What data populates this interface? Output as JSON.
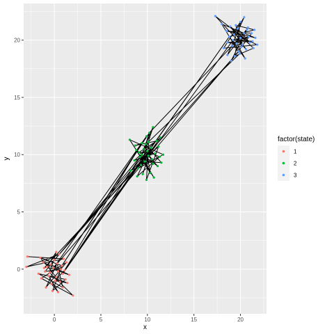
{
  "chart_data": {
    "type": "scatter",
    "subtype": "scatter-with-path",
    "title": "",
    "xlabel": "x",
    "ylabel": "y",
    "xlim": [
      -3.3,
      22.8
    ],
    "ylim": [
      -3.9,
      23.2
    ],
    "x_ticks": [
      0,
      5,
      10,
      15,
      20
    ],
    "x_tick_labels": [
      "0",
      "5",
      "10",
      "15",
      "20"
    ],
    "y_ticks": [
      0,
      5,
      10,
      15,
      20
    ],
    "y_tick_labels": [
      "0",
      "5",
      "10",
      "15",
      "20"
    ],
    "grid": true,
    "panel_background": "#ebebeb",
    "grid_color": "#ffffff",
    "path_color": "#000000",
    "legend": {
      "title": "factor(state)",
      "placement": "right",
      "entries": [
        {
          "label": "1",
          "color": "#f8766d"
        },
        {
          "label": "2",
          "color": "#00ba38"
        },
        {
          "label": "3",
          "color": "#619cff"
        }
      ]
    },
    "series": [
      {
        "name": "1",
        "color": "#f8766d",
        "points": [
          [
            -2.9,
            1.1
          ],
          [
            -3.0,
            0.2
          ],
          [
            -1.5,
            1.0
          ],
          [
            -1.2,
            0.6
          ],
          [
            -0.8,
            0.2
          ],
          [
            -0.5,
            -0.3
          ],
          [
            0.0,
            0.8
          ],
          [
            0.2,
            1.5
          ],
          [
            0.5,
            1.3
          ],
          [
            0.3,
            0.5
          ],
          [
            -0.1,
            0.1
          ],
          [
            0.4,
            -0.2
          ],
          [
            0.8,
            0.3
          ],
          [
            1.0,
            0.9
          ],
          [
            1.3,
            0.6
          ],
          [
            1.6,
            -0.5
          ],
          [
            1.2,
            -0.9
          ],
          [
            0.9,
            -0.4
          ],
          [
            0.6,
            -1.1
          ],
          [
            0.2,
            -0.7
          ],
          [
            -0.3,
            -1.3
          ],
          [
            -0.6,
            -0.6
          ],
          [
            -1.0,
            -0.2
          ],
          [
            -1.4,
            -0.8
          ],
          [
            -1.7,
            -0.4
          ],
          [
            -0.9,
            -1.6
          ],
          [
            -0.2,
            -1.9
          ],
          [
            0.4,
            -2.0
          ],
          [
            0.9,
            -1.6
          ],
          [
            2.0,
            -2.3
          ],
          [
            1.4,
            -1.2
          ],
          [
            0.7,
            0.0
          ],
          [
            -0.4,
            0.4
          ],
          [
            -1.1,
            0.1
          ],
          [
            0.1,
            -1.0
          ],
          [
            1.1,
            -0.1
          ]
        ]
      },
      {
        "name": "2",
        "color": "#00ba38",
        "points": [
          [
            8.1,
            11.3
          ],
          [
            8.7,
            10.8
          ],
          [
            9.1,
            10.2
          ],
          [
            9.4,
            11.0
          ],
          [
            9.6,
            10.5
          ],
          [
            9.9,
            11.6
          ],
          [
            10.2,
            11.9
          ],
          [
            10.6,
            12.4
          ],
          [
            11.0,
            11.2
          ],
          [
            11.4,
            11.5
          ],
          [
            11.2,
            10.7
          ],
          [
            10.8,
            10.1
          ],
          [
            10.5,
            9.6
          ],
          [
            10.1,
            9.9
          ],
          [
            9.7,
            9.4
          ],
          [
            9.3,
            9.1
          ],
          [
            9.0,
            8.8
          ],
          [
            8.6,
            9.5
          ],
          [
            8.2,
            8.6
          ],
          [
            8.9,
            8.1
          ],
          [
            9.5,
            8.3
          ],
          [
            9.9,
            7.8
          ],
          [
            10.3,
            8.4
          ],
          [
            10.7,
            8.0
          ],
          [
            11.1,
            9.0
          ],
          [
            11.5,
            9.3
          ],
          [
            11.7,
            10.0
          ],
          [
            10.4,
            10.6
          ],
          [
            9.8,
            10.9
          ],
          [
            9.2,
            9.8
          ],
          [
            10.0,
            10.3
          ],
          [
            10.6,
            9.2
          ],
          [
            9.4,
            10.0
          ],
          [
            8.8,
            10.4
          ],
          [
            11.3,
            9.8
          ],
          [
            10.1,
            11.1
          ]
        ]
      },
      {
        "name": "3",
        "color": "#619cff",
        "points": [
          [
            17.3,
            22.1
          ],
          [
            18.0,
            21.4
          ],
          [
            18.5,
            20.8
          ],
          [
            18.9,
            21.2
          ],
          [
            19.3,
            20.5
          ],
          [
            19.7,
            21.0
          ],
          [
            20.0,
            21.6
          ],
          [
            20.4,
            22.0
          ],
          [
            20.8,
            21.1
          ],
          [
            21.2,
            20.6
          ],
          [
            21.6,
            20.2
          ],
          [
            21.8,
            19.6
          ],
          [
            21.4,
            19.3
          ],
          [
            21.0,
            19.8
          ],
          [
            20.6,
            19.2
          ],
          [
            20.2,
            19.6
          ],
          [
            19.8,
            19.0
          ],
          [
            19.4,
            18.6
          ],
          [
            19.0,
            18.2
          ],
          [
            18.6,
            18.7
          ],
          [
            18.2,
            19.3
          ],
          [
            18.6,
            19.8
          ],
          [
            19.2,
            20.0
          ],
          [
            19.6,
            19.7
          ],
          [
            20.0,
            20.2
          ],
          [
            20.4,
            20.6
          ],
          [
            20.9,
            20.3
          ],
          [
            21.3,
            19.9
          ],
          [
            20.5,
            18.4
          ],
          [
            19.9,
            18.8
          ],
          [
            18.8,
            20.3
          ],
          [
            19.5,
            21.3
          ],
          [
            20.7,
            20.9
          ],
          [
            20.1,
            19.4
          ],
          [
            21.5,
            20.9
          ],
          [
            19.1,
            19.5
          ]
        ]
      }
    ],
    "path": [
      [
        -2.9,
        1.1
      ],
      [
        1.0,
        0.9
      ],
      [
        -3.0,
        0.2
      ],
      [
        0.5,
        1.3
      ],
      [
        -1.2,
        0.6
      ],
      [
        1.6,
        -0.5
      ],
      [
        -0.8,
        0.2
      ],
      [
        0.2,
        1.5
      ],
      [
        -0.5,
        -0.3
      ],
      [
        2.0,
        -2.3
      ],
      [
        -1.4,
        -0.8
      ],
      [
        1.3,
        0.6
      ],
      [
        -0.9,
        -1.6
      ],
      [
        0.3,
        0.5
      ],
      [
        0.9,
        -1.6
      ],
      [
        -1.7,
        -0.4
      ],
      [
        1.2,
        -0.9
      ],
      [
        -0.2,
        -1.9
      ],
      [
        0.8,
        0.3
      ],
      [
        -1.5,
        1.0
      ],
      [
        0.6,
        -1.1
      ],
      [
        0.1,
        -1.0
      ],
      [
        1.4,
        -1.2
      ],
      [
        -0.6,
        -0.6
      ],
      [
        0.4,
        -2.0
      ],
      [
        -0.3,
        -1.3
      ],
      [
        1.1,
        -0.1
      ],
      [
        9.4,
        11.0
      ],
      [
        8.7,
        10.8
      ],
      [
        11.0,
        11.2
      ],
      [
        9.1,
        10.2
      ],
      [
        10.8,
        10.1
      ],
      [
        8.6,
        9.5
      ],
      [
        11.4,
        11.5
      ],
      [
        9.3,
        9.1
      ],
      [
        10.6,
        12.4
      ],
      [
        9.6,
        10.5
      ],
      [
        10.5,
        9.6
      ],
      [
        8.2,
        8.6
      ],
      [
        11.2,
        10.7
      ],
      [
        9.9,
        7.8
      ],
      [
        10.2,
        11.9
      ],
      [
        9.0,
        8.8
      ],
      [
        11.7,
        10.0
      ],
      [
        8.1,
        11.3
      ],
      [
        10.7,
        8.0
      ],
      [
        9.7,
        9.4
      ],
      [
        11.5,
        9.3
      ],
      [
        9.8,
        10.9
      ],
      [
        10.3,
        8.4
      ],
      [
        8.8,
        10.4
      ],
      [
        11.1,
        9.0
      ],
      [
        10.1,
        9.9
      ],
      [
        9.5,
        8.3
      ],
      [
        10.4,
        10.6
      ],
      [
        8.9,
        8.1
      ],
      [
        11.3,
        9.8
      ],
      [
        10.0,
        10.3
      ],
      [
        10.6,
        9.2
      ],
      [
        9.2,
        9.8
      ],
      [
        10.1,
        11.1
      ],
      [
        19.9,
        18.8
      ],
      [
        18.0,
        21.4
      ],
      [
        21.6,
        20.2
      ],
      [
        18.5,
        20.8
      ],
      [
        21.2,
        20.6
      ],
      [
        19.0,
        18.2
      ],
      [
        20.8,
        21.1
      ],
      [
        18.6,
        18.7
      ],
      [
        20.4,
        22.0
      ],
      [
        19.3,
        20.5
      ],
      [
        21.8,
        19.6
      ],
      [
        18.2,
        19.3
      ],
      [
        20.0,
        21.6
      ],
      [
        19.4,
        18.6
      ],
      [
        21.4,
        19.3
      ],
      [
        18.9,
        21.2
      ],
      [
        20.6,
        19.2
      ],
      [
        17.3,
        22.1
      ],
      [
        21.0,
        19.8
      ],
      [
        19.7,
        21.0
      ],
      [
        20.2,
        19.6
      ],
      [
        18.6,
        19.8
      ],
      [
        21.3,
        19.9
      ],
      [
        19.2,
        20.0
      ],
      [
        20.9,
        20.3
      ],
      [
        19.6,
        19.7
      ],
      [
        20.5,
        18.4
      ],
      [
        18.8,
        20.3
      ],
      [
        21.5,
        20.9
      ],
      [
        19.5,
        21.3
      ],
      [
        20.1,
        19.4
      ],
      [
        20.0,
        20.2
      ],
      [
        20.7,
        20.9
      ],
      [
        19.1,
        19.5
      ],
      [
        20.4,
        20.6
      ],
      [
        10.2,
        11.9
      ],
      [
        0.4,
        -0.2
      ],
      [
        9.9,
        11.6
      ],
      [
        -0.1,
        0.1
      ],
      [
        19.8,
        19.0
      ],
      [
        0.0,
        0.8
      ],
      [
        10.0,
        10.3
      ],
      [
        1.1,
        -0.1
      ],
      [
        18.8,
        20.3
      ],
      [
        0.9,
        -0.4
      ],
      [
        9.4,
        10.0
      ],
      [
        -1.0,
        -0.2
      ],
      [
        0.7,
        0.0
      ],
      [
        -0.4,
        0.4
      ],
      [
        -1.1,
        0.1
      ],
      [
        10.1,
        9.9
      ],
      [
        19.2,
        20.0
      ]
    ]
  }
}
